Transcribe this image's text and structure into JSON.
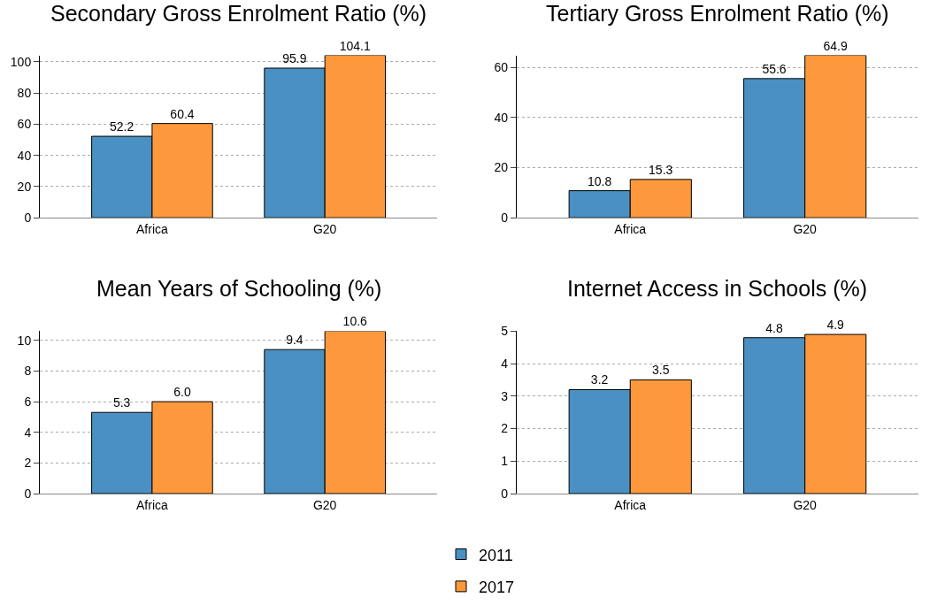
{
  "chart_data": [
    {
      "type": "bar",
      "title": "Secondary Gross Enrolment Ratio (%)",
      "categories": [
        "Africa",
        "G20"
      ],
      "series": [
        {
          "name": "2011",
          "color": "#4a90c2",
          "values": [
            52.2,
            95.9
          ]
        },
        {
          "name": "2017",
          "color": "#fd983c",
          "values": [
            60.4,
            104.1
          ]
        }
      ],
      "ylim": [
        0,
        104.1
      ],
      "yticks": [
        0,
        20,
        40,
        60,
        80,
        100
      ],
      "grid": "y",
      "data_labels": true,
      "legend": "bottom"
    },
    {
      "type": "bar",
      "title": "Tertiary Gross Enrolment Ratio (%)",
      "categories": [
        "Africa",
        "G20"
      ],
      "series": [
        {
          "name": "2011",
          "color": "#4a90c2",
          "values": [
            10.8,
            55.6
          ]
        },
        {
          "name": "2017",
          "color": "#fd983c",
          "values": [
            15.3,
            64.9
          ]
        }
      ],
      "ylim": [
        0,
        64.9
      ],
      "yticks": [
        0,
        20,
        40,
        60
      ],
      "grid": "y",
      "data_labels": true,
      "legend": "bottom"
    },
    {
      "type": "bar",
      "title": "Mean Years of Schooling (%)",
      "categories": [
        "Africa",
        "G20"
      ],
      "series": [
        {
          "name": "2011",
          "color": "#4a90c2",
          "values": [
            5.3,
            9.4
          ],
          "value_labels": [
            "5.3",
            "9.4"
          ]
        },
        {
          "name": "2017",
          "color": "#fd983c",
          "values": [
            6.0,
            10.6
          ],
          "value_labels": [
            "6.0",
            "10.6"
          ]
        }
      ],
      "ylim": [
        0,
        10.6
      ],
      "yticks": [
        0,
        2,
        4,
        6,
        8,
        10
      ],
      "grid": "y",
      "legend": "bottom"
    },
    {
      "type": "bar",
      "title": "Internet Access in Schools (%)",
      "categories": [
        "Africa",
        "G20"
      ],
      "series": [
        {
          "name": "2011",
          "color": "#4a90c2",
          "values": [
            3.2,
            4.8
          ]
        },
        {
          "name": "2017",
          "color": "#fd983c",
          "values": [
            3.5,
            4.9
          ]
        }
      ],
      "ylim": [
        0,
        5
      ],
      "yticks": [
        0,
        1,
        2,
        3,
        4,
        5
      ],
      "grid": "y",
      "data_labels": true,
      "legend": "bottom"
    }
  ]
}
